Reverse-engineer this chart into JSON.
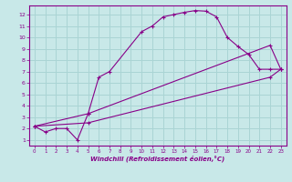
{
  "xlabel": "Windchill (Refroidissement éolien,°C)",
  "ylabel": "",
  "background_color": "#c8e8e8",
  "grid_color": "#aad4d4",
  "line_color": "#880088",
  "xlim": [
    -0.5,
    23.5
  ],
  "ylim": [
    0.5,
    12.8
  ],
  "xticks": [
    0,
    1,
    2,
    3,
    4,
    5,
    6,
    7,
    8,
    9,
    10,
    11,
    12,
    13,
    14,
    15,
    16,
    17,
    18,
    19,
    20,
    21,
    22,
    23
  ],
  "yticks": [
    1,
    2,
    3,
    4,
    5,
    6,
    7,
    8,
    9,
    10,
    11,
    12
  ],
  "series1_x": [
    0,
    1,
    2,
    3,
    4,
    5,
    6,
    7,
    10,
    11,
    12,
    13,
    14,
    15,
    16,
    17,
    18,
    19,
    20,
    21,
    22,
    23
  ],
  "series1_y": [
    2.2,
    1.7,
    2.0,
    2.0,
    1.0,
    3.3,
    6.5,
    7.0,
    10.5,
    11.0,
    11.8,
    12.0,
    12.2,
    12.35,
    12.3,
    11.8,
    10.0,
    9.2,
    8.5,
    7.2,
    7.2,
    7.2
  ],
  "series2_x": [
    0,
    5,
    22,
    23
  ],
  "series2_y": [
    2.2,
    3.3,
    9.3,
    7.2
  ],
  "series3_x": [
    0,
    5,
    22,
    23
  ],
  "series3_y": [
    2.2,
    2.5,
    6.5,
    7.2
  ]
}
